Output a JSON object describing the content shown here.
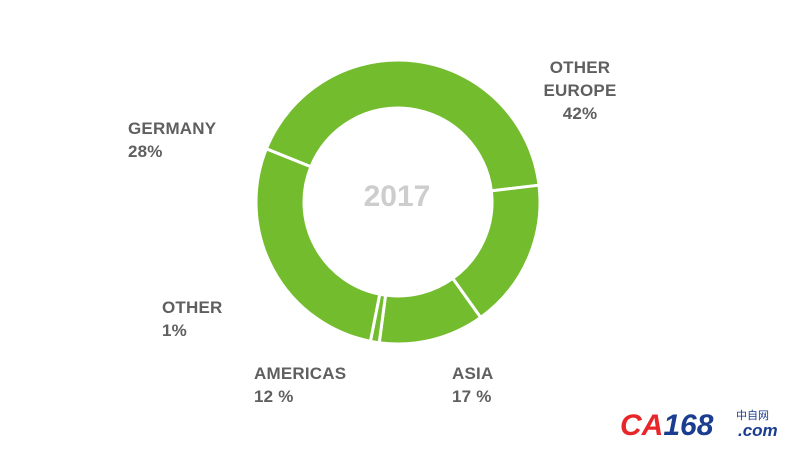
{
  "chart_data": {
    "type": "pie",
    "style": "donut",
    "center_label": "2017",
    "slices": [
      {
        "label_lines": [
          "OTHER",
          "EUROPE"
        ],
        "value": 42,
        "value_text": "42%"
      },
      {
        "label_lines": [
          "ASIA"
        ],
        "value": 17,
        "value_text": "17 %"
      },
      {
        "label_lines": [
          "AMERICAS"
        ],
        "value": 12,
        "value_text": "12 %"
      },
      {
        "label_lines": [
          "OTHER"
        ],
        "value": 1,
        "value_text": "1%"
      },
      {
        "label_lines": [
          "GERMANY"
        ],
        "value": 28,
        "value_text": "28%"
      }
    ],
    "color": "#72bc2e",
    "separator_color": "#ffffff"
  },
  "watermark": {
    "brand": "CA168",
    "cn_text": "中自网",
    "domain": ".com",
    "red": "#e8262a",
    "blue": "#1a3d8f"
  }
}
